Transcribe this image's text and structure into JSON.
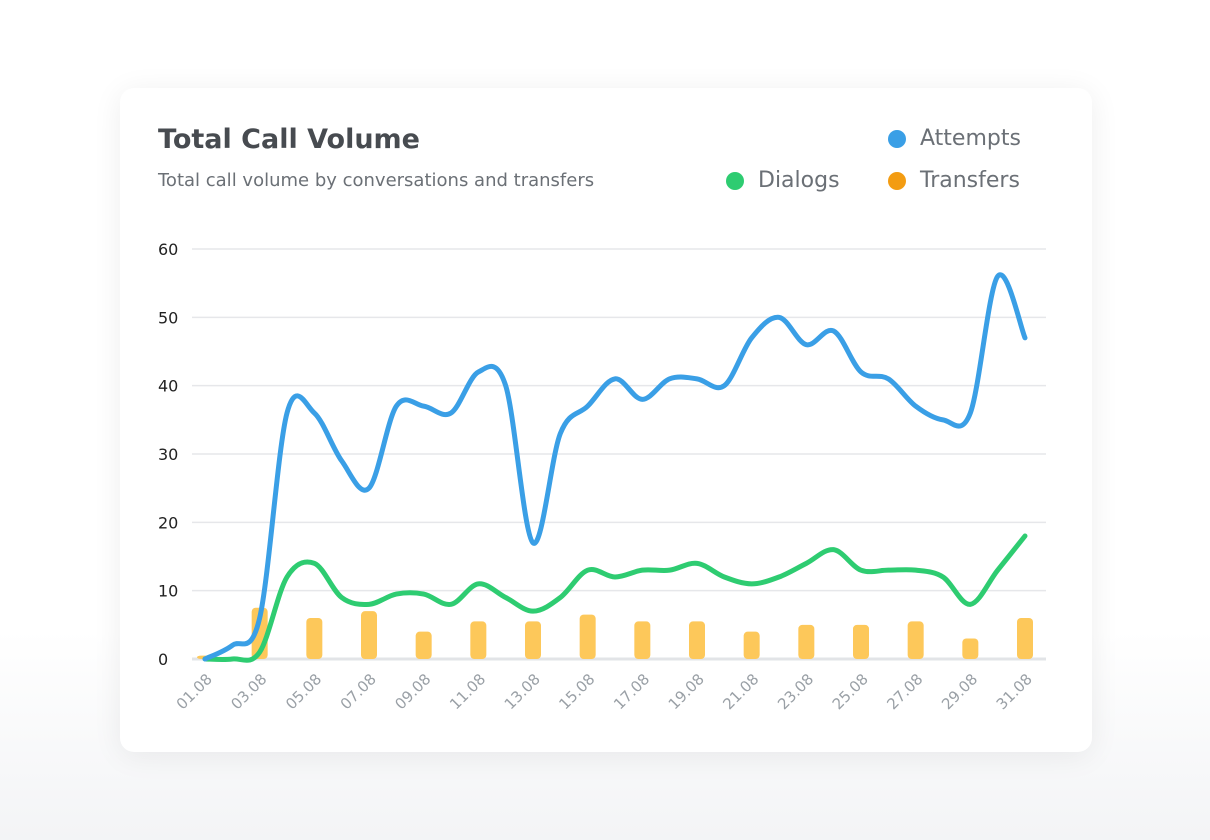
{
  "card": {
    "title": "Total Call Volume",
    "subtitle": "Total call volume by conversations and transfers"
  },
  "legend": [
    {
      "label": "Attempts",
      "color": "#3a9fe6"
    },
    {
      "label": "Dialogs",
      "color": "#2ecc71"
    },
    {
      "label": "Transfers",
      "color": "#f39c12"
    }
  ],
  "chart_data": {
    "type": "line",
    "title": "Total Call Volume",
    "subtitle": "Total call volume by conversations and transfers",
    "ylim": [
      0,
      60
    ],
    "yticks": [
      0,
      10,
      20,
      30,
      40,
      50,
      60
    ],
    "grid": true,
    "legend_position": "top-right",
    "x": [
      "01.08",
      "02.08",
      "03.08",
      "04.08",
      "05.08",
      "06.08",
      "07.08",
      "08.08",
      "09.08",
      "10.08",
      "11.08",
      "12.08",
      "13.08",
      "14.08",
      "15.08",
      "16.08",
      "17.08",
      "18.08",
      "19.08",
      "20.08",
      "21.08",
      "22.08",
      "23.08",
      "24.08",
      "25.08",
      "26.08",
      "27.08",
      "28.08",
      "29.08",
      "30.08",
      "31.08"
    ],
    "xtick_labels": [
      "01.08",
      "03.08",
      "05.08",
      "07.08",
      "09.08",
      "11.08",
      "13.08",
      "15.08",
      "17.08",
      "19.08",
      "21.08",
      "23.08",
      "25.08",
      "27.08",
      "29.08",
      "31.08"
    ],
    "series": [
      {
        "name": "Attempts",
        "type": "line",
        "color": "#3a9fe6",
        "values": [
          0,
          2,
          6,
          36,
          36,
          29,
          25,
          37,
          37,
          36,
          42,
          40,
          17,
          33,
          37,
          41,
          38,
          41,
          41,
          40,
          47,
          50,
          46,
          48,
          42,
          41,
          37,
          35,
          36,
          56,
          47
        ]
      },
      {
        "name": "Dialogs",
        "type": "line",
        "color": "#2ecc71",
        "values": [
          0,
          0,
          1,
          12,
          14,
          9,
          8,
          9.5,
          9.5,
          8,
          11,
          9,
          7,
          9,
          13,
          12,
          13,
          13,
          14,
          12,
          11,
          12,
          14,
          16,
          13,
          13,
          13,
          12,
          8,
          13,
          18
        ]
      },
      {
        "name": "Transfers",
        "type": "bar",
        "color": "#fdc85a",
        "values": [
          0.5,
          null,
          7.5,
          null,
          6,
          null,
          7,
          null,
          4,
          null,
          5.5,
          null,
          5.5,
          null,
          6.5,
          null,
          5.5,
          null,
          5.5,
          null,
          4,
          null,
          5,
          null,
          5,
          null,
          5.5,
          null,
          3,
          null,
          6
        ]
      }
    ]
  }
}
